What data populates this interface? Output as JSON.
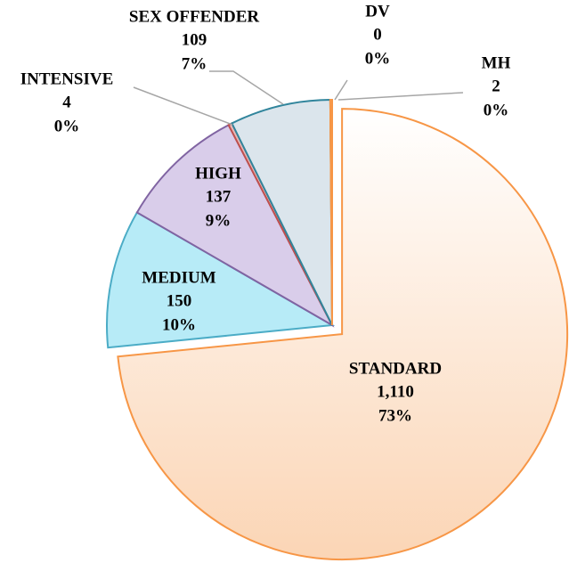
{
  "chart_data": {
    "type": "pie",
    "categories": [
      "STANDARD",
      "MEDIUM",
      "HIGH",
      "INTENSIVE",
      "SEX OFFENDER",
      "DV",
      "MH"
    ],
    "values": [
      1110,
      150,
      137,
      4,
      109,
      0,
      2
    ],
    "value_labels": [
      "1,110",
      "150",
      "137",
      "4",
      "109",
      "0",
      "2"
    ],
    "percents": [
      73,
      10,
      9,
      0,
      7,
      0,
      0
    ],
    "percent_labels": [
      "73%",
      "10%",
      "9%",
      "0%",
      "7%",
      "0%",
      "0%"
    ],
    "colors": [
      "#fbd5b5",
      "#b7ebf7",
      "#d9cdea",
      "#e6b9b8",
      "#dbe5ec",
      "#fcd5b4",
      "#fcd5b4"
    ],
    "stroke_colors": [
      "#f79646",
      "#4bacc6",
      "#8064a2",
      "#c0504d",
      "#31859c",
      "#f79646",
      "#f79646"
    ]
  }
}
